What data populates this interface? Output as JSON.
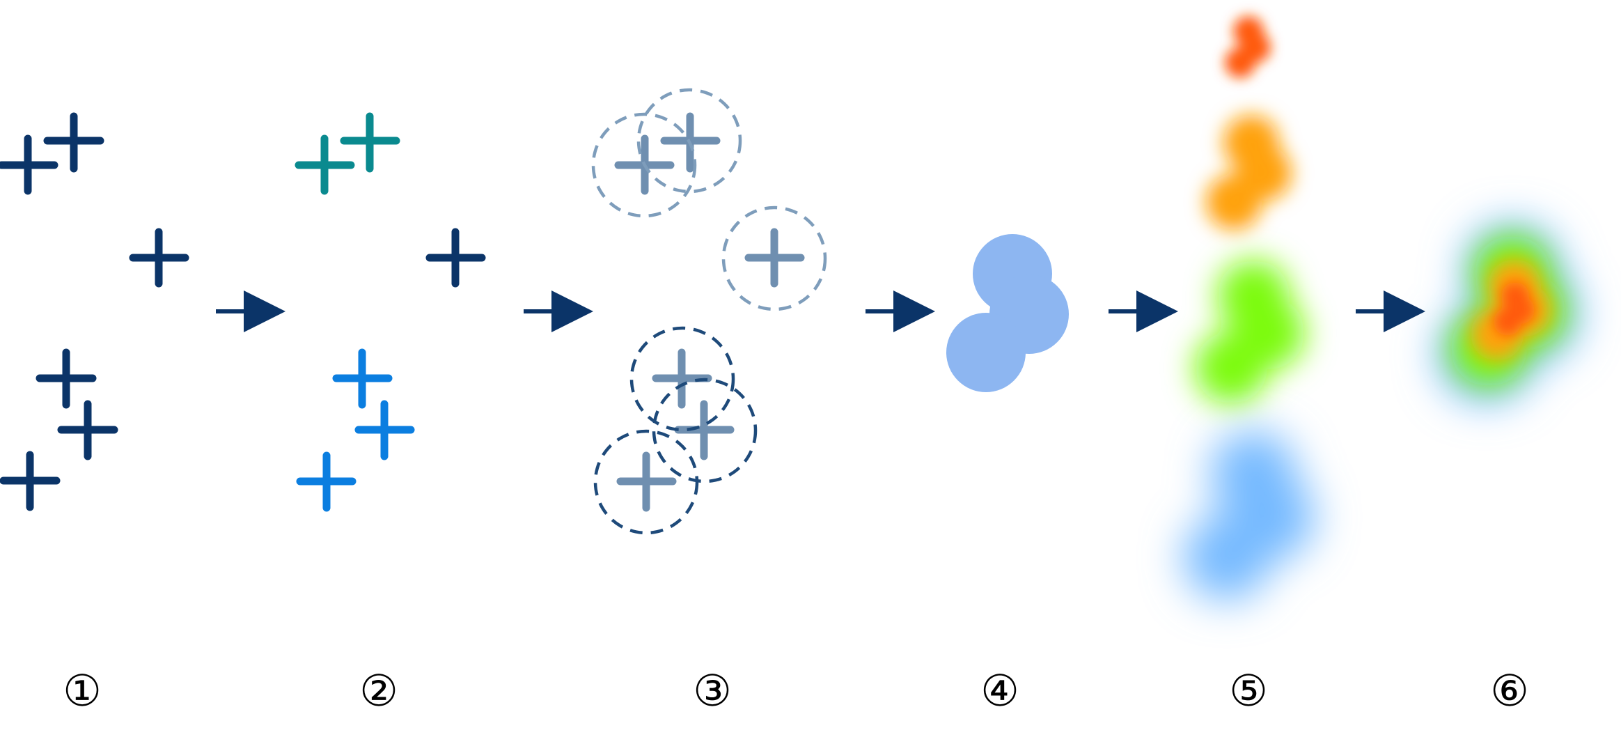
{
  "diagram": {
    "description_free": true,
    "colors": {
      "navy": "#0b3468",
      "teal": "#0a8a8f",
      "blue": "#0b7ee0",
      "fade_blue": "#6f8fb0",
      "merged": "#8db6f1",
      "level_orange_red": "#ff5a0a",
      "level_orange": "#ffa20a",
      "level_green": "#7cfb0a",
      "level_blue": "#74b9ff",
      "arrow": "#0b3468"
    },
    "steps": [
      {
        "label": "①"
      },
      {
        "label": "②"
      },
      {
        "label": "③"
      },
      {
        "label": "④"
      },
      {
        "label": "⑤"
      },
      {
        "label": "⑥"
      }
    ],
    "groups": {
      "step1_color": "navy",
      "step2_colors": [
        "teal",
        "navy",
        "blue"
      ],
      "step3_circle_colors": [
        "fade_blue",
        "navy"
      ],
      "step5_levels": [
        "level_orange_red",
        "level_orange",
        "level_green",
        "level_blue"
      ]
    }
  }
}
